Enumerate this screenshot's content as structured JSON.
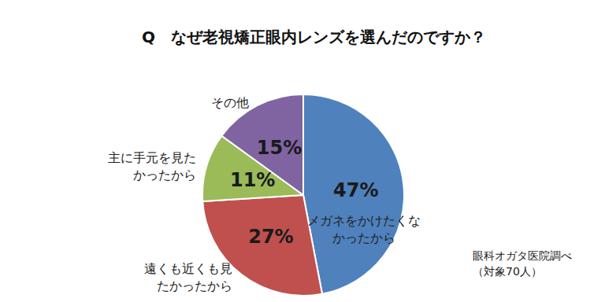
{
  "chart_data": {
    "type": "pie",
    "title": "Q　なぜ老視矯正眼内レンズを選んだのですか？",
    "categories": [
      "メガネをかけたくなかったから",
      "遠くも近くも見たかったから",
      "主に手元を見たかったから",
      "その他"
    ],
    "values": [
      47,
      27,
      11,
      15
    ],
    "value_labels": [
      "47%",
      "27%",
      "11%",
      "15%"
    ],
    "colors": [
      "#4f81bd",
      "#c0504d",
      "#9bbb59",
      "#8064a2"
    ],
    "data_labels": true,
    "annotations": [
      "眼科オガタ医院調べ",
      "（対象70人）"
    ]
  }
}
